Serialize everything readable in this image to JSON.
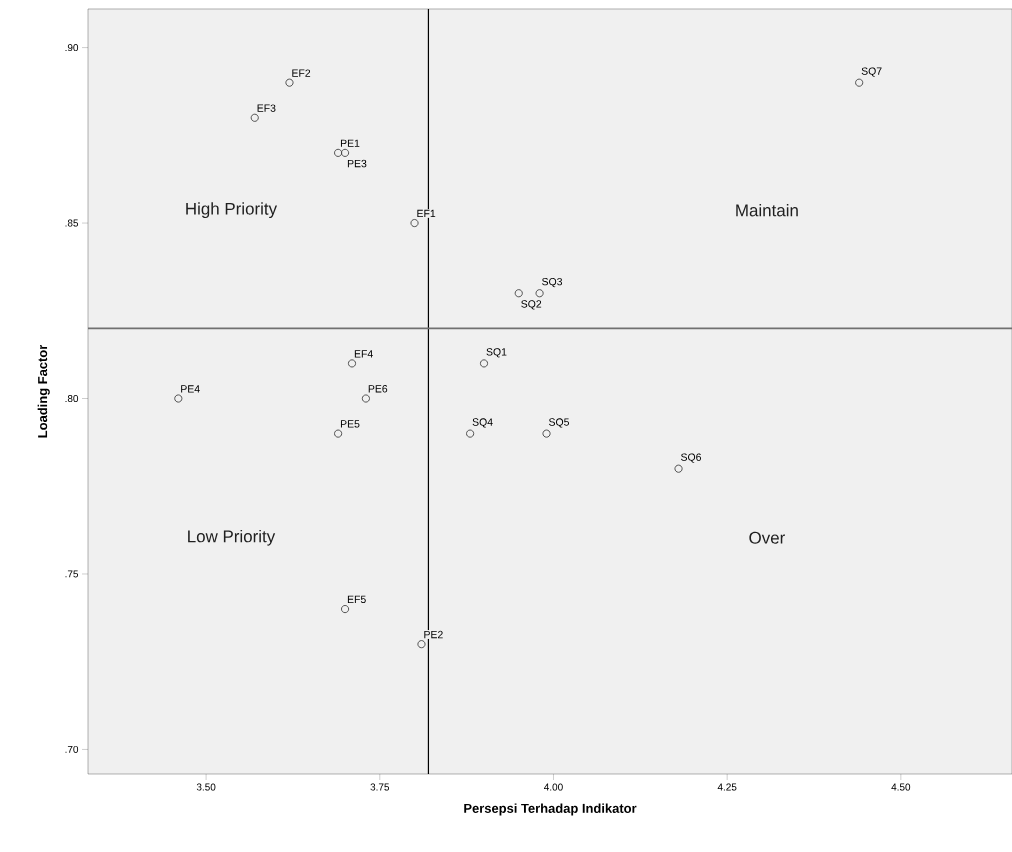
{
  "chart_data": {
    "type": "scatter",
    "xlabel": "Persepsi Terhadap Indikator",
    "ylabel": "Loading Factor",
    "x": [
      3.62,
      3.57,
      3.69,
      3.7,
      3.8,
      3.98,
      3.95,
      3.71,
      3.9,
      3.46,
      3.73,
      3.69,
      3.88,
      3.99,
      4.18,
      3.7,
      3.81,
      4.44
    ],
    "values": [
      0.89,
      0.88,
      0.87,
      0.87,
      0.85,
      0.83,
      0.83,
      0.81,
      0.81,
      0.8,
      0.8,
      0.79,
      0.79,
      0.79,
      0.78,
      0.74,
      0.73,
      0.89
    ],
    "color": "#404040",
    "marker": "circle",
    "grid": false,
    "xlim": [
      3.33,
      4.66
    ],
    "ylim": [
      0.693,
      0.911
    ],
    "xticks": [
      {
        "value": 3.5,
        "label": "3.50"
      },
      {
        "value": 3.75,
        "label": "3.75"
      },
      {
        "value": 4.0,
        "label": "4.00"
      },
      {
        "value": 4.25,
        "label": "4.25"
      },
      {
        "value": 4.5,
        "label": "4.50"
      }
    ],
    "yticks": [
      {
        "value": 0.7,
        "label": ".70"
      },
      {
        "value": 0.75,
        "label": ".75"
      },
      {
        "value": 0.8,
        "label": ".80"
      },
      {
        "value": 0.85,
        "label": ".85"
      },
      {
        "value": 0.9,
        "label": ".90"
      }
    ],
    "ref_lines": [
      {
        "axis": "x",
        "value": 3.82,
        "color": "#000000"
      },
      {
        "axis": "y",
        "value": 0.82,
        "color": "#707070"
      }
    ],
    "annotations": [
      "High Priority",
      "Maintain",
      "Low Priority",
      "Over",
      {
        "text": "EF2",
        "x": 3.62,
        "y": 0.89
      },
      {
        "text": "EF3",
        "x": 3.57,
        "y": 0.88
      },
      {
        "text": "PE1",
        "x": 3.69,
        "y": 0.87
      },
      {
        "text": "PE3",
        "x": 3.7,
        "y": 0.87
      },
      {
        "text": "EF1",
        "x": 3.8,
        "y": 0.85
      },
      {
        "text": "SQ3",
        "x": 3.98,
        "y": 0.83
      },
      {
        "text": "SQ2",
        "x": 3.95,
        "y": 0.83
      },
      {
        "text": "EF4",
        "x": 3.71,
        "y": 0.81
      },
      {
        "text": "SQ1",
        "x": 3.9,
        "y": 0.81
      },
      {
        "text": "PE4",
        "x": 3.46,
        "y": 0.8
      },
      {
        "text": "PE6",
        "x": 3.73,
        "y": 0.8
      },
      {
        "text": "PE5",
        "x": 3.69,
        "y": 0.79
      },
      {
        "text": "SQ4",
        "x": 3.88,
        "y": 0.79
      },
      {
        "text": "SQ5",
        "x": 3.99,
        "y": 0.79
      },
      {
        "text": "SQ6",
        "x": 4.18,
        "y": 0.78
      },
      {
        "text": "EF5",
        "x": 3.7,
        "y": 0.74
      },
      {
        "text": "PE2",
        "x": 3.81,
        "y": 0.73
      },
      {
        "text": "SQ7",
        "x": 4.44,
        "y": 0.89
      }
    ]
  }
}
